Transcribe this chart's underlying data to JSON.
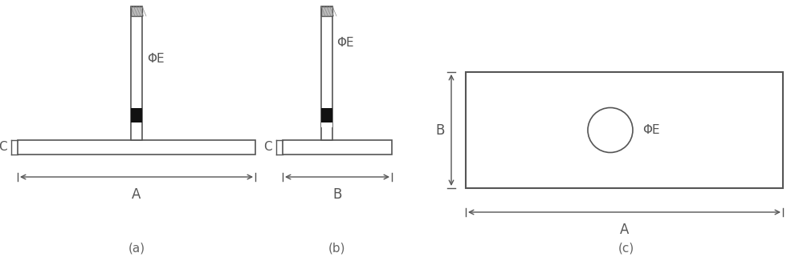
{
  "bg_color": "#ffffff",
  "text_color": "#555555",
  "line_color": "#555555",
  "black_color": "#111111",
  "dim_color": "#555555",
  "fig_labels": [
    "(a)",
    "(b)",
    "(c)"
  ],
  "phi_e_label": "ΦE",
  "A_label": "A",
  "B_label": "B",
  "C_label": "C",
  "fig_label_color": "#666666"
}
